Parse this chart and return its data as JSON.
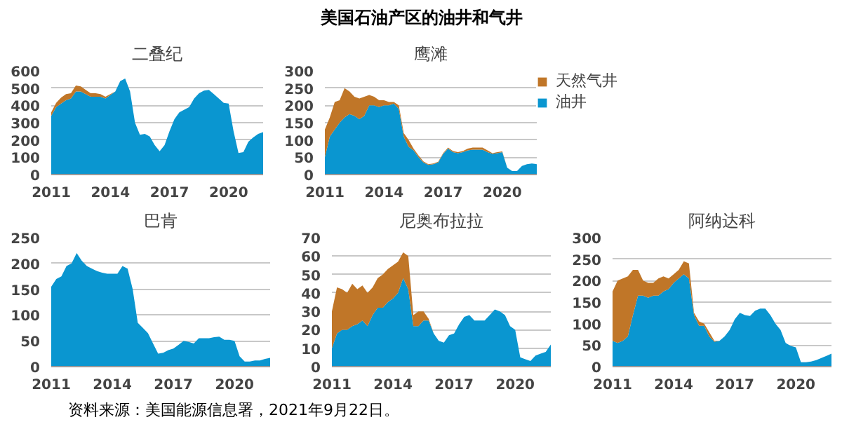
{
  "chart_data": [
    {
      "type": "other",
      "title": "美国石油产区的油井和气井"
    },
    {
      "type": "area",
      "title": "二叠纪",
      "stacked": true,
      "grid": "y",
      "xlim": [
        2011,
        2021.75
      ],
      "xticks": [
        2011,
        2014,
        2017,
        2020
      ],
      "ylim": [
        0,
        600
      ],
      "yticks": [
        0,
        100,
        200,
        300,
        400,
        500,
        600
      ],
      "x": [
        2011,
        2011.25,
        2011.5,
        2011.75,
        2012,
        2012.25,
        2012.5,
        2012.75,
        2013,
        2013.25,
        2013.5,
        2013.75,
        2014,
        2014.25,
        2014.5,
        2014.75,
        2015,
        2015.25,
        2015.5,
        2015.75,
        2016,
        2016.25,
        2016.5,
        2016.75,
        2017,
        2017.25,
        2017.5,
        2017.75,
        2018,
        2018.25,
        2018.5,
        2018.75,
        2019,
        2019.25,
        2019.5,
        2019.75,
        2020,
        2020.25,
        2020.5,
        2020.75,
        2021,
        2021.25,
        2021.5,
        2021.75
      ],
      "series": [
        {
          "color": "#0a96d0",
          "values": [
            340,
            390,
            410,
            430,
            440,
            480,
            480,
            465,
            450,
            450,
            450,
            440,
            460,
            480,
            540,
            555,
            480,
            300,
            230,
            235,
            220,
            170,
            135,
            170,
            250,
            320,
            360,
            375,
            390,
            440,
            470,
            485,
            490,
            465,
            440,
            415,
            410,
            250,
            125,
            130,
            190,
            215,
            235,
            245
          ]
        },
        {
          "color": "#c07628",
          "values": [
            20,
            25,
            35,
            35,
            30,
            35,
            30,
            25,
            20,
            20,
            15,
            10,
            5,
            0,
            0,
            0,
            0,
            0,
            0,
            0,
            0,
            0,
            0,
            0,
            0,
            0,
            0,
            0,
            0,
            0,
            0,
            0,
            0,
            0,
            0,
            0,
            0,
            0,
            0,
            0,
            0,
            0,
            0,
            0
          ]
        }
      ]
    },
    {
      "type": "area",
      "title": "鹰滩",
      "stacked": true,
      "grid": "y",
      "legend": "right",
      "xlim": [
        2011,
        2021.75
      ],
      "xticks": [
        2011,
        2014,
        2017,
        2020
      ],
      "ylim": [
        0,
        300
      ],
      "yticks": [
        0,
        50,
        100,
        150,
        200,
        250,
        300
      ],
      "x": [
        2011,
        2011.25,
        2011.5,
        2011.75,
        2012,
        2012.25,
        2012.5,
        2012.75,
        2013,
        2013.25,
        2013.5,
        2013.75,
        2014,
        2014.25,
        2014.5,
        2014.75,
        2015,
        2015.25,
        2015.5,
        2015.75,
        2016,
        2016.25,
        2016.5,
        2016.75,
        2017,
        2017.25,
        2017.5,
        2017.75,
        2018,
        2018.25,
        2018.5,
        2018.75,
        2019,
        2019.25,
        2019.5,
        2019.75,
        2020,
        2020.25,
        2020.5,
        2020.75,
        2021,
        2021.25,
        2021.5,
        2021.75
      ],
      "series": [
        {
          "name": "油井",
          "color": "#0a96d0",
          "values": [
            50,
            110,
            130,
            150,
            165,
            175,
            170,
            160,
            170,
            200,
            200,
            195,
            200,
            200,
            205,
            190,
            110,
            80,
            70,
            50,
            35,
            28,
            30,
            35,
            60,
            75,
            65,
            62,
            65,
            70,
            72,
            72,
            72,
            65,
            60,
            62,
            65,
            20,
            10,
            10,
            25,
            30,
            32,
            30
          ]
        },
        {
          "name": "天然气井",
          "color": "#c07628",
          "values": [
            80,
            55,
            80,
            65,
            85,
            65,
            55,
            60,
            55,
            30,
            25,
            20,
            15,
            10,
            5,
            10,
            10,
            20,
            5,
            5,
            3,
            2,
            2,
            2,
            2,
            3,
            3,
            3,
            3,
            5,
            6,
            6,
            6,
            5,
            2,
            3,
            2,
            0,
            0,
            0,
            0,
            0,
            0,
            0
          ]
        }
      ]
    },
    {
      "type": "area",
      "title": "巴肯",
      "stacked": true,
      "grid": "y",
      "xlim": [
        2011,
        2021.75
      ],
      "xticks": [
        2011,
        2014,
        2017,
        2020
      ],
      "ylim": [
        0,
        250
      ],
      "yticks": [
        0,
        50,
        100,
        150,
        200,
        250
      ],
      "x": [
        2011,
        2011.25,
        2011.5,
        2011.75,
        2012,
        2012.25,
        2012.5,
        2012.75,
        2013,
        2013.25,
        2013.5,
        2013.75,
        2014,
        2014.25,
        2014.5,
        2014.75,
        2015,
        2015.25,
        2015.5,
        2015.75,
        2016,
        2016.25,
        2016.5,
        2016.75,
        2017,
        2017.25,
        2017.5,
        2017.75,
        2018,
        2018.25,
        2018.5,
        2018.75,
        2019,
        2019.25,
        2019.5,
        2019.75,
        2020,
        2020.25,
        2020.5,
        2020.75,
        2021,
        2021.25,
        2021.5,
        2021.75
      ],
      "series": [
        {
          "color": "#0a96d0",
          "values": [
            155,
            170,
            175,
            195,
            200,
            220,
            205,
            195,
            190,
            185,
            182,
            180,
            180,
            180,
            195,
            190,
            150,
            85,
            75,
            65,
            45,
            25,
            27,
            32,
            35,
            42,
            50,
            48,
            45,
            55,
            55,
            55,
            57,
            58,
            52,
            52,
            50,
            20,
            10,
            10,
            12,
            12,
            15,
            17
          ]
        }
      ]
    },
    {
      "type": "area",
      "title": "尼奥布拉拉",
      "stacked": true,
      "grid": "y",
      "xlim": [
        2011,
        2021.75
      ],
      "xticks": [
        2011,
        2014,
        2017,
        2020
      ],
      "ylim": [
        0,
        70
      ],
      "yticks": [
        0,
        10,
        20,
        30,
        40,
        50,
        60,
        70
      ],
      "x": [
        2011,
        2011.25,
        2011.5,
        2011.75,
        2012,
        2012.25,
        2012.5,
        2012.75,
        2013,
        2013.25,
        2013.5,
        2013.75,
        2014,
        2014.25,
        2014.5,
        2014.75,
        2015,
        2015.25,
        2015.5,
        2015.75,
        2016,
        2016.25,
        2016.5,
        2016.75,
        2017,
        2017.25,
        2017.5,
        2017.75,
        2018,
        2018.25,
        2018.5,
        2018.75,
        2019,
        2019.25,
        2019.5,
        2019.75,
        2020,
        2020.25,
        2020.5,
        2020.75,
        2021,
        2021.25,
        2021.5,
        2021.75
      ],
      "series": [
        {
          "color": "#0a96d0",
          "values": [
            10,
            18,
            20,
            20,
            22,
            23,
            25,
            22,
            28,
            32,
            32,
            35,
            37,
            40,
            48,
            42,
            22,
            22,
            25,
            25,
            18,
            14,
            13,
            17,
            18,
            23,
            27,
            28,
            25,
            25,
            25,
            28,
            31,
            30,
            28,
            22,
            20,
            5,
            4,
            3,
            6,
            7,
            8,
            12
          ]
        },
        {
          "color": "#c07628",
          "values": [
            20,
            25,
            22,
            20,
            23,
            19,
            19,
            18,
            15,
            16,
            18,
            18,
            18,
            17,
            14,
            18,
            6,
            8,
            5,
            1,
            0,
            0,
            0,
            0,
            0,
            0,
            0,
            0,
            0,
            0,
            0,
            0,
            0,
            0,
            0,
            0,
            0,
            0,
            0,
            0,
            0,
            0,
            0,
            0
          ]
        }
      ]
    },
    {
      "type": "area",
      "title": "阿纳达科",
      "stacked": true,
      "grid": "y",
      "xlim": [
        2011,
        2021.75
      ],
      "xticks": [
        2011,
        2014,
        2017,
        2020
      ],
      "ylim": [
        0,
        300
      ],
      "yticks": [
        0,
        50,
        100,
        150,
        200,
        250,
        300
      ],
      "x": [
        2011,
        2011.25,
        2011.5,
        2011.75,
        2012,
        2012.25,
        2012.5,
        2012.75,
        2013,
        2013.25,
        2013.5,
        2013.75,
        2014,
        2014.25,
        2014.5,
        2014.75,
        2015,
        2015.25,
        2015.5,
        2015.75,
        2016,
        2016.25,
        2016.5,
        2016.75,
        2017,
        2017.25,
        2017.5,
        2017.75,
        2018,
        2018.25,
        2018.5,
        2018.75,
        2019,
        2019.25,
        2019.5,
        2019.75,
        2020,
        2020.25,
        2020.5,
        2020.75,
        2021,
        2021.25,
        2021.5,
        2021.75
      ],
      "series": [
        {
          "color": "#0a96d0",
          "values": [
            60,
            55,
            60,
            70,
            120,
            165,
            165,
            160,
            165,
            165,
            175,
            180,
            195,
            205,
            215,
            205,
            120,
            95,
            95,
            70,
            58,
            60,
            70,
            85,
            110,
            125,
            120,
            118,
            130,
            135,
            135,
            120,
            100,
            85,
            55,
            48,
            45,
            10,
            10,
            12,
            15,
            20,
            25,
            30
          ]
        },
        {
          "color": "#c07628",
          "values": [
            115,
            145,
            145,
            140,
            105,
            60,
            35,
            35,
            30,
            40,
            35,
            25,
            20,
            20,
            30,
            35,
            5,
            10,
            5,
            10,
            2,
            0,
            0,
            0,
            0,
            0,
            0,
            0,
            0,
            0,
            0,
            0,
            0,
            0,
            0,
            0,
            0,
            0,
            0,
            0,
            0,
            0,
            0,
            0
          ]
        }
      ]
    },
    {
      "type": "other",
      "annotations": [
        "资料来源：美国能源信息署，2021年9月22日。"
      ]
    }
  ]
}
